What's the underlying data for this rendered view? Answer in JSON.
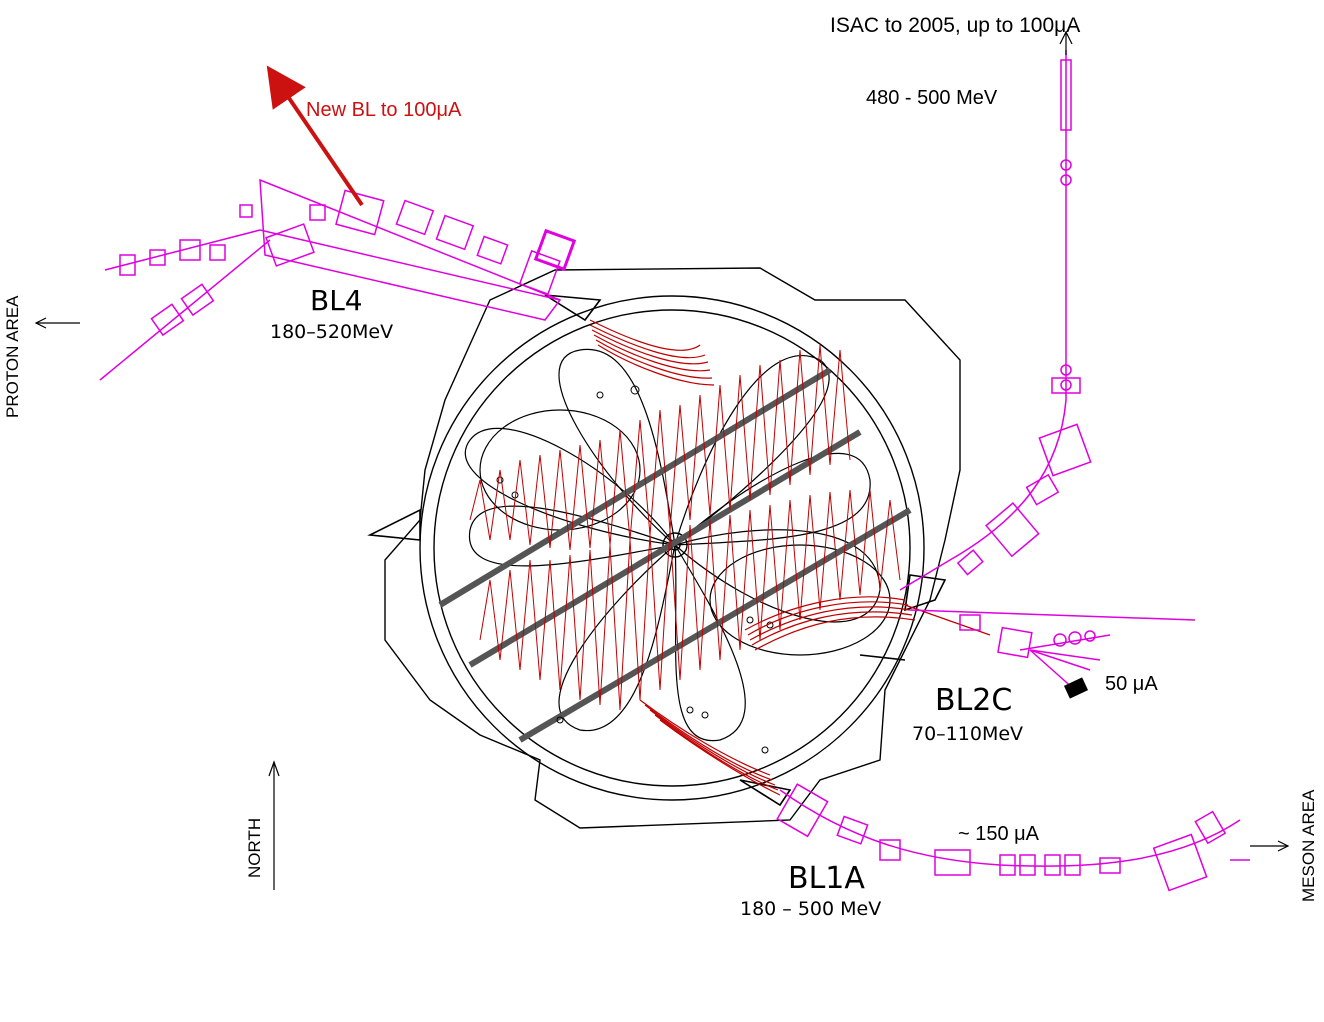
{
  "labels": {
    "isac": "ISAC to 2005, up to 100μA",
    "isac_energy": "480 - 500 MeV",
    "new_bl": "New BL to 100μA",
    "bl4_name": "BL4",
    "bl4_energy": "180–520MeV",
    "proton_area": "PROTON AREA",
    "bl2c_name": "BL2C",
    "bl2c_energy": "70–110MeV",
    "bl2c_current": "50  μA",
    "bl1a_current": "~  150  μA",
    "bl1a_name": "BL1A",
    "bl1a_energy": "180  –  500  MeV",
    "meson_area": "MESON AREA",
    "north": "NORTH"
  },
  "colors": {
    "beamline": "#e000e0",
    "orbit": "#c00000",
    "new_beamline_arrow": "#cc1111",
    "structure": "#000000"
  },
  "icons": [
    "north-arrow-icon",
    "proton-area-arrow-icon",
    "meson-area-arrow-icon",
    "isac-arrow-icon"
  ]
}
